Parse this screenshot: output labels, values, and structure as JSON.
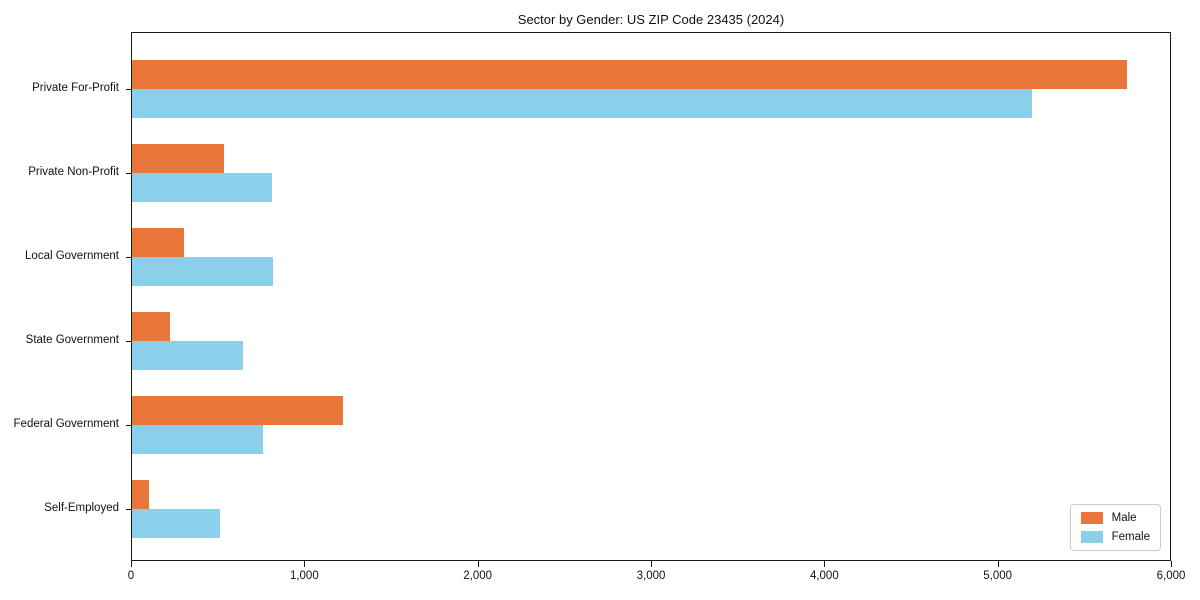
{
  "title": "Sector by Gender: US ZIP Code 23435 (2024)",
  "chart_data": {
    "type": "bar",
    "orientation": "horizontal",
    "title": "Sector by Gender: US ZIP Code 23435 (2024)",
    "categories": [
      "Private For-Profit",
      "Private Non-Profit",
      "Local Government",
      "State Government",
      "Federal Government",
      "Self-Employed"
    ],
    "series": [
      {
        "name": "Male",
        "color": "#e8763b",
        "values": [
          5750,
          530,
          300,
          220,
          1220,
          100
        ]
      },
      {
        "name": "Female",
        "color": "#8bcfea",
        "values": [
          5200,
          810,
          815,
          640,
          760,
          510
        ]
      }
    ],
    "xlabel": "",
    "ylabel": "",
    "xlim": [
      0,
      6000
    ],
    "xticks": [
      0,
      1000,
      2000,
      3000,
      4000,
      5000,
      6000
    ],
    "xtick_labels": [
      "0",
      "1,000",
      "2,000",
      "3,000",
      "4,000",
      "5,000",
      "6,000"
    ],
    "grid": false,
    "legend_position": "lower right"
  }
}
